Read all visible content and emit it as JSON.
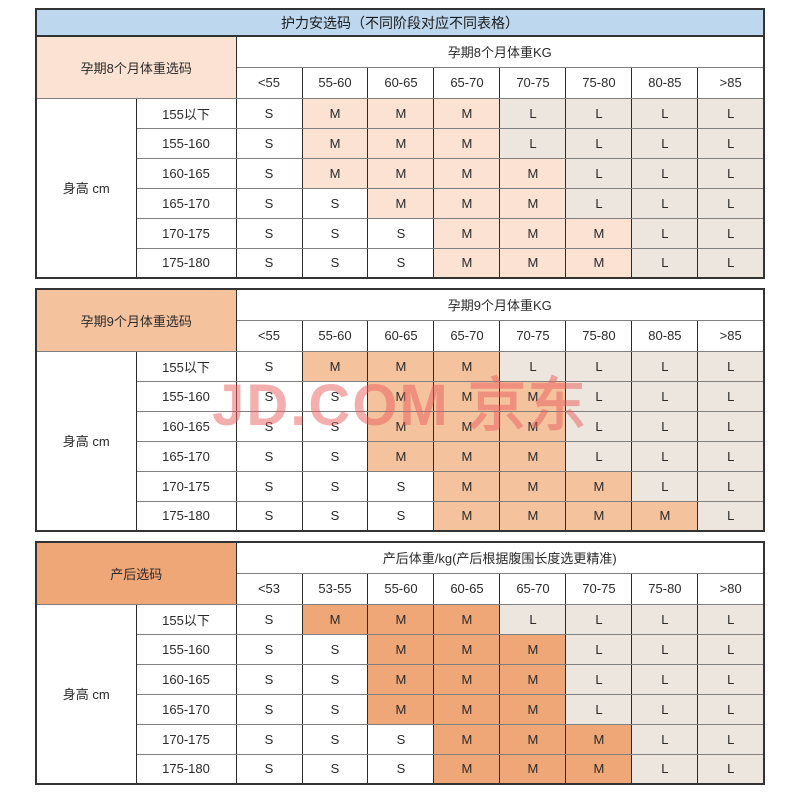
{
  "page": {
    "title": "护力安选码（不同阶段对应不同表格）"
  },
  "watermark": {
    "text": "JD.COM 京东"
  },
  "colors": {
    "title_bg": "#BDD7EE",
    "table1_accent": "#FBE2D2",
    "table2_accent": "#F5C29E",
    "table3_accent": "#F0A778",
    "size_l_bg": "#EDE6DF",
    "size_s_bg": "#FFFFFF",
    "border_dark": "#333333",
    "watermark_pink": "#E95E5E"
  },
  "height_label": "身高 cm",
  "height_rows": [
    "155以下",
    "155-160",
    "160-165",
    "165-170",
    "170-175",
    "175-180"
  ],
  "tables": [
    {
      "left_header": "孕期8个月体重选码",
      "weight_header": "孕期8个月体重KG",
      "weight_cols": [
        "<55",
        "55-60",
        "60-65",
        "65-70",
        "70-75",
        "75-80",
        "80-85",
        ">85"
      ],
      "rows": [
        [
          "S",
          "M",
          "M",
          "M",
          "L",
          "L",
          "L",
          "L"
        ],
        [
          "S",
          "M",
          "M",
          "M",
          "L",
          "L",
          "L",
          "L"
        ],
        [
          "S",
          "M",
          "M",
          "M",
          "M",
          "L",
          "L",
          "L"
        ],
        [
          "S",
          "S",
          "M",
          "M",
          "M",
          "L",
          "L",
          "L"
        ],
        [
          "S",
          "S",
          "S",
          "M",
          "M",
          "M",
          "L",
          "L"
        ],
        [
          "S",
          "S",
          "S",
          "M",
          "M",
          "M",
          "L",
          "L"
        ]
      ]
    },
    {
      "left_header": "孕期9个月体重选码",
      "weight_header": "孕期9个月体重KG",
      "weight_cols": [
        "<55",
        "55-60",
        "60-65",
        "65-70",
        "70-75",
        "75-80",
        "80-85",
        ">85"
      ],
      "rows": [
        [
          "S",
          "M",
          "M",
          "M",
          "L",
          "L",
          "L",
          "L"
        ],
        [
          "S",
          "S",
          "M",
          "M",
          "M",
          "L",
          "L",
          "L"
        ],
        [
          "S",
          "S",
          "M",
          "M",
          "M",
          "L",
          "L",
          "L"
        ],
        [
          "S",
          "S",
          "M",
          "M",
          "M",
          "L",
          "L",
          "L"
        ],
        [
          "S",
          "S",
          "S",
          "M",
          "M",
          "M",
          "L",
          "L"
        ],
        [
          "S",
          "S",
          "S",
          "M",
          "M",
          "M",
          "M",
          "L"
        ]
      ]
    },
    {
      "left_header": "产后选码",
      "weight_header": "产后体重/kg(产后根据腹围长度选更精准)",
      "weight_cols": [
        "<53",
        "53-55",
        "55-60",
        "60-65",
        "65-70",
        "70-75",
        "75-80",
        ">80"
      ],
      "rows": [
        [
          "S",
          "M",
          "M",
          "M",
          "L",
          "L",
          "L",
          "L"
        ],
        [
          "S",
          "S",
          "M",
          "M",
          "M",
          "L",
          "L",
          "L"
        ],
        [
          "S",
          "S",
          "M",
          "M",
          "M",
          "L",
          "L",
          "L"
        ],
        [
          "S",
          "S",
          "M",
          "M",
          "M",
          "L",
          "L",
          "L"
        ],
        [
          "S",
          "S",
          "S",
          "M",
          "M",
          "M",
          "L",
          "L"
        ],
        [
          "S",
          "S",
          "S",
          "M",
          "M",
          "M",
          "L",
          "L"
        ]
      ]
    }
  ]
}
